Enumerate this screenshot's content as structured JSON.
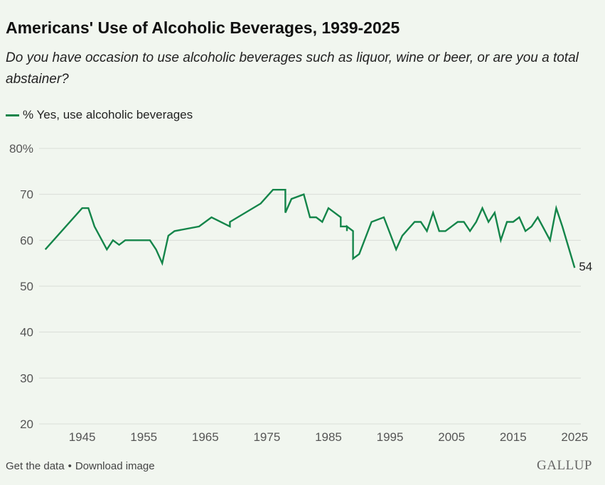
{
  "title": "Americans' Use of Alcoholic Beverages, 1939-2025",
  "subtitle": "Do you have occasion to use alcoholic beverages such as liquor, wine or beer, or are you a total abstainer?",
  "footer": {
    "get_data": "Get the data",
    "separator": "•",
    "download": "Download image"
  },
  "logo": "GALLUP",
  "colors": {
    "line": "#14854a",
    "grid": "#d9ddd7",
    "background": "#f1f6ef"
  },
  "chart_data": {
    "type": "line",
    "series": [
      {
        "name": "% Yes, use alcoholic beverages",
        "end_label": "54",
        "x": [
          1939,
          1945,
          1946,
          1947,
          1949,
          1950,
          1951,
          1952,
          1954,
          1956,
          1957,
          1958,
          1959,
          1960,
          1964,
          1966,
          1969,
          1969,
          1974,
          1976,
          1977,
          1978,
          1978,
          1979,
          1981,
          1982,
          1983,
          1984,
          1985,
          1987,
          1987,
          1988,
          1988,
          1988,
          1989,
          1989,
          1990,
          1992,
          1994,
          1996,
          1997,
          1999,
          2000,
          2001,
          2002,
          2003,
          2004,
          2006,
          2007,
          2008,
          2009,
          2010,
          2011,
          2012,
          2013,
          2014,
          2015,
          2016,
          2017,
          2018,
          2019,
          2021,
          2022,
          2023,
          2025
        ],
        "values": [
          58,
          67,
          67,
          63,
          58,
          60,
          59,
          60,
          60,
          60,
          58,
          55,
          61,
          62,
          63,
          65,
          63,
          64,
          68,
          71,
          71,
          71,
          66,
          69,
          70,
          65,
          65,
          64,
          67,
          65,
          63,
          63,
          62,
          63,
          62,
          56,
          57,
          64,
          65,
          58,
          61,
          64,
          64,
          62,
          66,
          62,
          62,
          64,
          64,
          62,
          64,
          67,
          64,
          66,
          60,
          64,
          64,
          65,
          62,
          63,
          65,
          60,
          67,
          63,
          54
        ]
      }
    ],
    "xticks": [
      "1945",
      "1955",
      "1965",
      "1975",
      "1985",
      "1995",
      "2005",
      "2015",
      "2025"
    ],
    "yticks": [
      "20",
      "30",
      "40",
      "50",
      "60",
      "70",
      "80%"
    ],
    "xlim": [
      1938,
      2026
    ],
    "ylim": [
      20,
      80
    ],
    "grid": "horizontal",
    "legend": "top-left"
  }
}
